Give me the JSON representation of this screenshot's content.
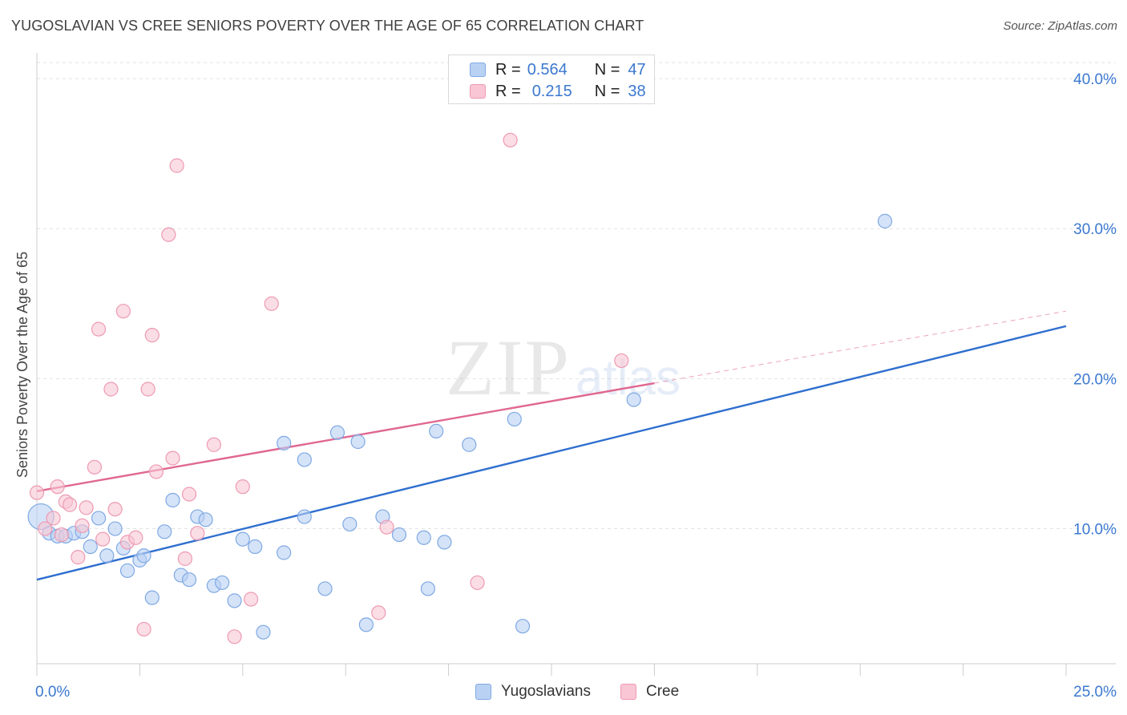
{
  "header": {
    "title": "YUGOSLAVIAN VS CREE SENIORS POVERTY OVER THE AGE OF 65 CORRELATION CHART",
    "source": "Source: ZipAtlas.com"
  },
  "watermark": {
    "zip": "ZIP",
    "atlas": "atlas"
  },
  "legend_top": {
    "rows": [
      {
        "r_label": "R =",
        "r_value": "0.564",
        "n_label": "N =",
        "n_value": "47"
      },
      {
        "r_label": "R =",
        "r_value": "0.215",
        "n_label": "N =",
        "n_value": "38"
      }
    ]
  },
  "legend_bottom": {
    "items": [
      "Yugoslavians",
      "Cree"
    ]
  },
  "colors": {
    "blue_fill": "#b9d1f3",
    "blue_stroke": "#7fa9e4",
    "blue_line": "#2f6fcf",
    "pink_fill": "#f8c6d4",
    "pink_stroke": "#ee9ab2",
    "pink_line": "#e06890",
    "axis_text": "#3b78d0",
    "grid": "#e2e2e2"
  },
  "chart_data": {
    "type": "scatter",
    "title": "YUGOSLAVIAN VS CREE SENIORS POVERTY OVER THE AGE OF 65 CORRELATION CHART",
    "xlabel": "",
    "ylabel": "Seniors Poverty Over the Age of 65",
    "xlim": [
      0,
      25
    ],
    "ylim": [
      1.0,
      41.5
    ],
    "x_tick_labels": [
      "0.0%",
      "25.0%"
    ],
    "y_ticks": [
      10,
      20,
      30,
      40
    ],
    "y_tick_labels": [
      "10.0%",
      "20.0%",
      "30.0%",
      "40.0%"
    ],
    "grid": true,
    "series": [
      {
        "name": "Yugoslavians",
        "color": "blue",
        "points": [
          [
            0.1,
            10.8
          ],
          [
            0.3,
            9.7
          ],
          [
            0.5,
            9.5
          ],
          [
            0.7,
            9.5
          ],
          [
            0.9,
            9.7
          ],
          [
            1.1,
            9.8
          ],
          [
            1.3,
            8.8
          ],
          [
            1.5,
            10.7
          ],
          [
            1.7,
            8.2
          ],
          [
            1.9,
            10.0
          ],
          [
            2.1,
            8.7
          ],
          [
            2.2,
            7.2
          ],
          [
            2.5,
            7.9
          ],
          [
            2.6,
            8.2
          ],
          [
            2.8,
            5.4
          ],
          [
            3.1,
            9.8
          ],
          [
            3.3,
            11.9
          ],
          [
            3.5,
            6.9
          ],
          [
            3.7,
            6.6
          ],
          [
            3.9,
            10.8
          ],
          [
            4.1,
            10.6
          ],
          [
            4.3,
            6.2
          ],
          [
            4.5,
            6.4
          ],
          [
            4.8,
            5.2
          ],
          [
            5.0,
            9.3
          ],
          [
            5.3,
            8.8
          ],
          [
            5.5,
            3.1
          ],
          [
            6.0,
            8.4
          ],
          [
            6.0,
            15.7
          ],
          [
            6.5,
            14.6
          ],
          [
            6.5,
            10.8
          ],
          [
            7.0,
            6.0
          ],
          [
            7.3,
            16.4
          ],
          [
            7.6,
            10.3
          ],
          [
            7.8,
            15.8
          ],
          [
            8.0,
            3.6
          ],
          [
            8.4,
            10.8
          ],
          [
            8.8,
            9.6
          ],
          [
            9.4,
            9.4
          ],
          [
            9.5,
            6.0
          ],
          [
            9.7,
            16.5
          ],
          [
            9.9,
            9.1
          ],
          [
            10.5,
            15.6
          ],
          [
            11.6,
            17.3
          ],
          [
            11.8,
            3.5
          ],
          [
            14.5,
            18.6
          ],
          [
            20.6,
            30.5
          ]
        ],
        "trend": {
          "x": [
            0,
            25
          ],
          "y": [
            6.6,
            23.5
          ]
        }
      },
      {
        "name": "Cree",
        "color": "pink",
        "points": [
          [
            0.0,
            12.4
          ],
          [
            0.2,
            10.0
          ],
          [
            0.4,
            10.7
          ],
          [
            0.5,
            12.8
          ],
          [
            0.6,
            9.6
          ],
          [
            0.7,
            11.8
          ],
          [
            0.8,
            11.6
          ],
          [
            1.0,
            8.1
          ],
          [
            1.1,
            10.2
          ],
          [
            1.2,
            11.4
          ],
          [
            1.4,
            14.1
          ],
          [
            1.5,
            23.3
          ],
          [
            1.6,
            9.3
          ],
          [
            1.8,
            19.3
          ],
          [
            1.9,
            11.3
          ],
          [
            2.1,
            24.5
          ],
          [
            2.2,
            9.1
          ],
          [
            2.4,
            9.4
          ],
          [
            2.6,
            3.3
          ],
          [
            2.7,
            19.3
          ],
          [
            2.8,
            22.9
          ],
          [
            2.9,
            13.8
          ],
          [
            3.2,
            29.6
          ],
          [
            3.3,
            14.7
          ],
          [
            3.4,
            34.2
          ],
          [
            3.6,
            8.0
          ],
          [
            3.7,
            12.3
          ],
          [
            3.9,
            9.7
          ],
          [
            4.3,
            15.6
          ],
          [
            4.8,
            2.8
          ],
          [
            5.0,
            12.8
          ],
          [
            5.2,
            5.3
          ],
          [
            5.7,
            25.0
          ],
          [
            8.3,
            4.4
          ],
          [
            8.5,
            10.1
          ],
          [
            10.7,
            6.4
          ],
          [
            11.5,
            35.9
          ],
          [
            14.2,
            21.2
          ]
        ],
        "trend": {
          "x": [
            0,
            15
          ],
          "y": [
            12.5,
            19.7
          ]
        },
        "trend_extension": {
          "x": [
            15,
            25
          ],
          "y": [
            19.7,
            24.5
          ]
        }
      }
    ]
  }
}
